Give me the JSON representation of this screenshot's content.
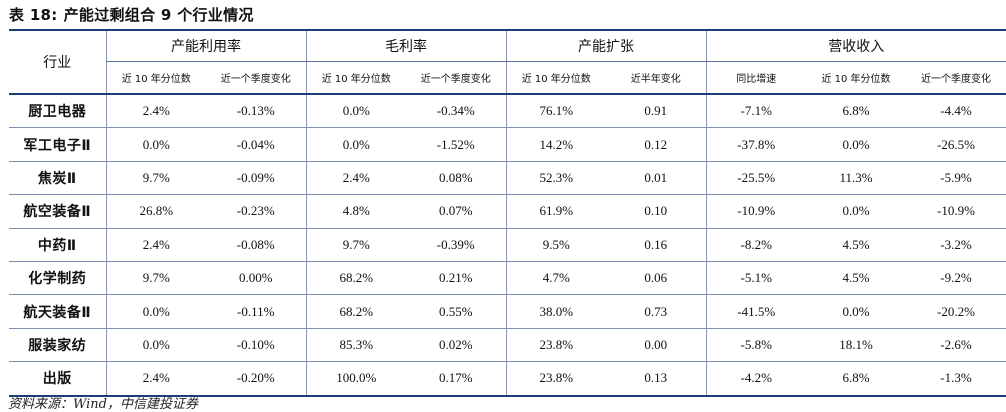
{
  "title": {
    "label": "表 18:",
    "text": "产能过剩组合 9 个行业情况"
  },
  "table": {
    "industry_header": "行业",
    "groups": [
      {
        "name": "产能利用率",
        "subs": [
          "近 10 年分位数",
          "近一个季度变化"
        ]
      },
      {
        "name": "毛利率",
        "subs": [
          "近 10 年分位数",
          "近一个季度变化"
        ]
      },
      {
        "name": "产能扩张",
        "subs": [
          "近 10 年分位数",
          "近半年变化"
        ]
      },
      {
        "name": "营收收入",
        "subs": [
          "同比增速",
          "近 10 年分位数",
          "近一个季度变化"
        ]
      }
    ],
    "rows": [
      {
        "industry": "厨卫电器",
        "values": [
          "2.4%",
          "-0.13%",
          "0.0%",
          "-0.34%",
          "76.1%",
          "0.91",
          "-7.1%",
          "6.8%",
          "-4.4%"
        ]
      },
      {
        "industry": "军工电子Ⅱ",
        "values": [
          "0.0%",
          "-0.04%",
          "0.0%",
          "-1.52%",
          "14.2%",
          "0.12",
          "-37.8%",
          "0.0%",
          "-26.5%"
        ]
      },
      {
        "industry": "焦炭Ⅱ",
        "values": [
          "9.7%",
          "-0.09%",
          "2.4%",
          "0.08%",
          "52.3%",
          "0.01",
          "-25.5%",
          "11.3%",
          "-5.9%"
        ]
      },
      {
        "industry": "航空装备Ⅱ",
        "values": [
          "26.8%",
          "-0.23%",
          "4.8%",
          "0.07%",
          "61.9%",
          "0.10",
          "-10.9%",
          "0.0%",
          "-10.9%"
        ]
      },
      {
        "industry": "中药Ⅱ",
        "values": [
          "2.4%",
          "-0.08%",
          "9.7%",
          "-0.39%",
          "9.5%",
          "0.16",
          "-8.2%",
          "4.5%",
          "-3.2%"
        ]
      },
      {
        "industry": "化学制药",
        "values": [
          "9.7%",
          "0.00%",
          "68.2%",
          "0.21%",
          "4.7%",
          "0.06",
          "-5.1%",
          "4.5%",
          "-9.2%"
        ]
      },
      {
        "industry": "航天装备Ⅱ",
        "values": [
          "0.0%",
          "-0.11%",
          "68.2%",
          "0.55%",
          "38.0%",
          "0.73",
          "-41.5%",
          "0.0%",
          "-20.2%"
        ]
      },
      {
        "industry": "服装家纺",
        "values": [
          "0.0%",
          "-0.10%",
          "85.3%",
          "0.02%",
          "23.8%",
          "0.00",
          "-5.8%",
          "18.1%",
          "-2.6%"
        ]
      },
      {
        "industry": "出版",
        "values": [
          "2.4%",
          "-0.20%",
          "100.0%",
          "0.17%",
          "23.8%",
          "0.13",
          "-4.2%",
          "6.8%",
          "-1.3%"
        ]
      }
    ]
  },
  "source": "资料来源：Wind，中信建投证券"
}
